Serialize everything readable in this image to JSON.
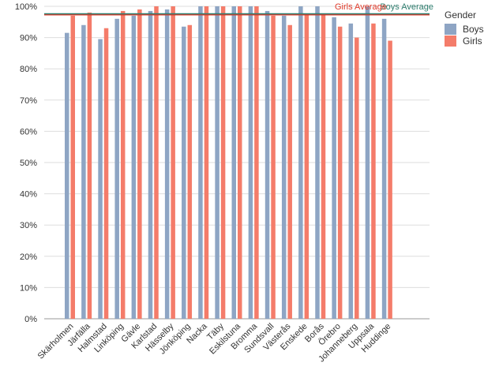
{
  "chart_data": {
    "type": "bar",
    "title": "",
    "xlabel": "",
    "ylabel": "",
    "ylim": [
      0,
      1
    ],
    "yticks": [
      "0%",
      "10%",
      "20%",
      "30%",
      "40%",
      "50%",
      "60%",
      "70%",
      "80%",
      "90%",
      "100%"
    ],
    "grid": true,
    "legend_position": "right",
    "legend_title": "Gender",
    "categories": [
      "Skärholmen",
      "Järfälla",
      "Halmstad",
      "Linköping",
      "Gävle",
      "Karlstad",
      "Hässelby",
      "Jönköping",
      "Nacka",
      "Täby",
      "Eskilstuna",
      "Bromma",
      "Sundsvall",
      "Västerås",
      "Enskede",
      "Borås",
      "Örebro",
      "Johanneberg",
      "Uppsala",
      "Huddinge"
    ],
    "series": [
      {
        "name": "Boys",
        "color": "#8ea5c4",
        "values": [
          0.915,
          0.94,
          0.895,
          0.96,
          0.97,
          0.985,
          0.99,
          0.935,
          1.0,
          1.0,
          1.0,
          1.0,
          0.985,
          0.97,
          1.0,
          1.0,
          0.965,
          0.945,
          1.0,
          0.96
        ]
      },
      {
        "name": "Girls",
        "color": "#f47c6a",
        "values": [
          0.97,
          0.98,
          0.93,
          0.985,
          0.99,
          1.0,
          1.0,
          0.94,
          1.0,
          1.0,
          1.0,
          1.0,
          0.97,
          0.94,
          0.975,
          0.975,
          0.935,
          0.9,
          0.945,
          0.89
        ]
      }
    ],
    "reference_lines": [
      {
        "label": "Girls Average",
        "value": 0.973,
        "color": "#e03a2a"
      },
      {
        "label": "Boys Average",
        "value": 0.976,
        "color": "#2e7d6e"
      }
    ]
  }
}
